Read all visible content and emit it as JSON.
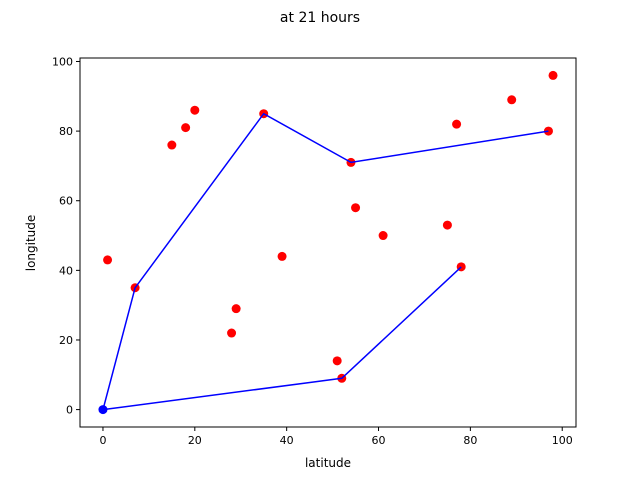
{
  "chart_data": {
    "type": "scatter",
    "title": "at 21 hours",
    "xlabel": "latitude",
    "ylabel": "longitude",
    "xlim": [
      -5,
      103
    ],
    "ylim": [
      -5,
      101
    ],
    "xticks": [
      0,
      20,
      40,
      60,
      80,
      100
    ],
    "yticks": [
      0,
      20,
      40,
      60,
      80,
      100
    ],
    "grid": false,
    "points": [
      {
        "x": 1,
        "y": 43
      },
      {
        "x": 7,
        "y": 35
      },
      {
        "x": 15,
        "y": 76
      },
      {
        "x": 18,
        "y": 81
      },
      {
        "x": 20,
        "y": 86
      },
      {
        "x": 28,
        "y": 22
      },
      {
        "x": 29,
        "y": 29
      },
      {
        "x": 35,
        "y": 85
      },
      {
        "x": 39,
        "y": 44
      },
      {
        "x": 51,
        "y": 14
      },
      {
        "x": 52,
        "y": 9
      },
      {
        "x": 54,
        "y": 71
      },
      {
        "x": 55,
        "y": 58
      },
      {
        "x": 61,
        "y": 50
      },
      {
        "x": 75,
        "y": 53
      },
      {
        "x": 77,
        "y": 82
      },
      {
        "x": 78,
        "y": 41
      },
      {
        "x": 89,
        "y": 89
      },
      {
        "x": 97,
        "y": 80
      },
      {
        "x": 98,
        "y": 96
      }
    ],
    "route": [
      {
        "x": 0,
        "y": 0
      },
      {
        "x": 7,
        "y": 35
      },
      {
        "x": 35,
        "y": 85
      },
      {
        "x": 54,
        "y": 71
      },
      {
        "x": 97,
        "y": 80
      }
    ],
    "route2": [
      {
        "x": 0,
        "y": 0
      },
      {
        "x": 52,
        "y": 9
      },
      {
        "x": 78,
        "y": 41
      }
    ],
    "origin": {
      "x": 0,
      "y": 0
    },
    "colors": {
      "points": "#ff0000",
      "route": "#0000ff",
      "origin": "#0000ff"
    }
  }
}
